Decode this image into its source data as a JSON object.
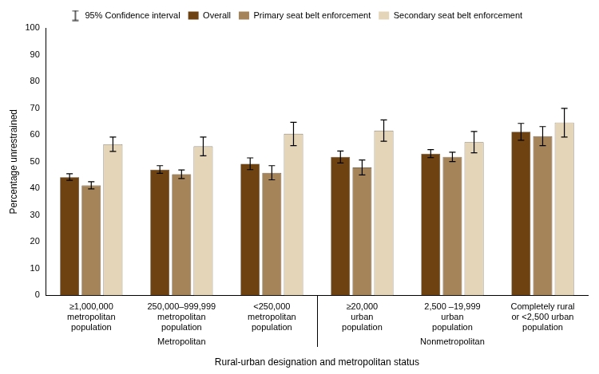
{
  "chart_data": {
    "type": "bar",
    "y_label": "Percentage unrestrained",
    "x_label": "Rural-urban designation and metropolitan status",
    "ci_label": "95% Confidence interval",
    "categories": [
      [
        "≥1,000,000",
        "metropolitan",
        "population"
      ],
      [
        "250,000–999,999",
        "metropolitan",
        "population"
      ],
      [
        "<250,000",
        "metropolitan",
        "population"
      ],
      [
        "≥20,000",
        "urban",
        "population"
      ],
      [
        "2,500 –19,999",
        "urban",
        "population"
      ],
      [
        "Completely rural",
        "or <2,500 urban",
        "population"
      ]
    ],
    "category_groups": [
      "Metropolitan",
      "Metropolitan",
      "Metropolitan",
      "Nonmetropolitan",
      "Nonmetropolitan",
      "Nonmetropolitan"
    ],
    "series": [
      {
        "name": "Overall",
        "color": "#6e4311",
        "values": [
          44.2,
          47.0,
          49.2,
          51.8,
          53.0,
          61.2
        ],
        "ci_low": [
          43.0,
          45.6,
          47.0,
          49.5,
          51.5,
          58.0
        ],
        "ci_high": [
          45.5,
          48.5,
          51.4,
          54.0,
          54.5,
          64.3
        ]
      },
      {
        "name": "Primary seat belt enforcement",
        "color": "#a6845a",
        "values": [
          41.1,
          45.3,
          45.8,
          47.8,
          51.8,
          59.5
        ],
        "ci_low": [
          39.8,
          43.7,
          43.2,
          45.0,
          50.0,
          56.0
        ],
        "ci_high": [
          42.5,
          46.9,
          48.5,
          50.6,
          53.5,
          63.1
        ]
      },
      {
        "name": "Secondary seat belt enforcement",
        "color": "#e4d5b8",
        "values": [
          56.5,
          55.7,
          60.4,
          61.6,
          57.3,
          64.6
        ],
        "ci_low": [
          53.8,
          52.2,
          56.0,
          57.6,
          53.3,
          59.2
        ],
        "ci_high": [
          59.2,
          59.2,
          64.7,
          65.6,
          61.3,
          69.9
        ]
      }
    ],
    "ylim": [
      0,
      100
    ],
    "yticks": [
      0,
      10,
      20,
      30,
      40,
      50,
      60,
      70,
      80,
      90,
      100
    ],
    "grid": false,
    "legend": "top"
  }
}
